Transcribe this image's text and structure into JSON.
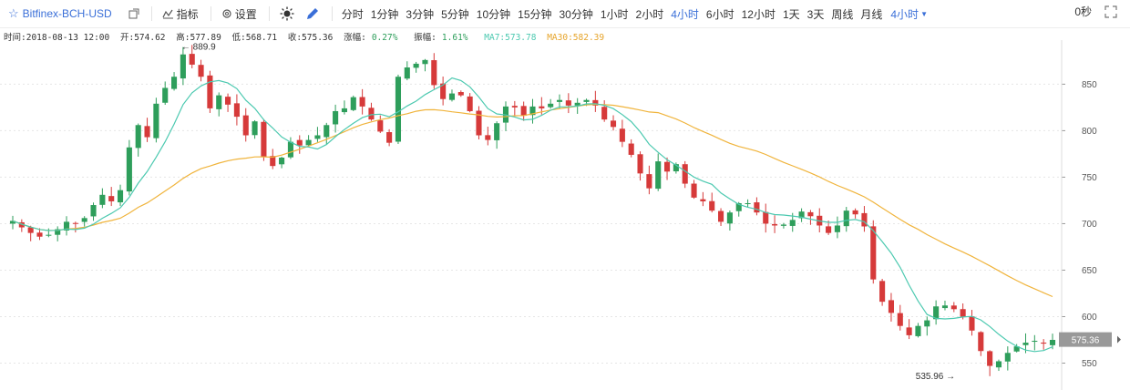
{
  "toolbar": {
    "symbol": "Bitfinex-BCH-USD",
    "indicator_label": "指标",
    "settings_label": "设置",
    "timeframes": [
      "分时",
      "1分钟",
      "3分钟",
      "5分钟",
      "10分钟",
      "15分钟",
      "30分钟",
      "1小时",
      "2小时",
      "4小时",
      "6小时",
      "12小时",
      "1天",
      "3天",
      "周线",
      "月线"
    ],
    "active_timeframe": "4小时",
    "dropdown_label": "4小时",
    "refresh": "0秒"
  },
  "info": {
    "time": "时间:2018-08-13 12:00",
    "open": "开:574.62",
    "high": "高:577.89",
    "low": "低:568.71",
    "close": "收:575.36",
    "change": "涨幅:",
    "change_value": "0.27%",
    "amplitude": "振幅:",
    "amplitude_value": "1.61%",
    "ma7": "MA7:573.78",
    "ma30": "MA30:582.39"
  },
  "colors": {
    "up": "#2e9e5b",
    "down": "#d63a3a",
    "ma7": "#4cc9b0",
    "ma30": "#f0b43c",
    "accent": "#3a6fd8",
    "price_tag": "#999999"
  },
  "chart_data": {
    "type": "candlestick",
    "y_ticks": [
      550,
      600,
      650,
      700,
      750,
      800,
      850
    ],
    "ylim": [
      530,
      895
    ],
    "current_price": 575.36,
    "current_price_label": "575.36",
    "max_label": "← 889.9",
    "min_label": "535.96 →",
    "closes": [
      703,
      696,
      690,
      686,
      688,
      694,
      702,
      700,
      706,
      720,
      731,
      724,
      736,
      782,
      806,
      793,
      829,
      846,
      858,
      882,
      871,
      858,
      824,
      838,
      828,
      815,
      795,
      810,
      772,
      762,
      771,
      788,
      784,
      790,
      795,
      806,
      821,
      824,
      836,
      826,
      812,
      799,
      787,
      858,
      868,
      872,
      876,
      849,
      834,
      840,
      838,
      821,
      795,
      790,
      808,
      826,
      825,
      816,
      826,
      824,
      829,
      833,
      827,
      830,
      833,
      827,
      812,
      804,
      788,
      774,
      754,
      738,
      767,
      756,
      764,
      743,
      728,
      724,
      714,
      702,
      712,
      722,
      722,
      712,
      700,
      698,
      699,
      704,
      713,
      708,
      698,
      690,
      698,
      714,
      710,
      697,
      640,
      616,
      604,
      590,
      580,
      590,
      596,
      611,
      612,
      608,
      600,
      585,
      563,
      547,
      552,
      561,
      568,
      572,
      574,
      571,
      575
    ]
  }
}
